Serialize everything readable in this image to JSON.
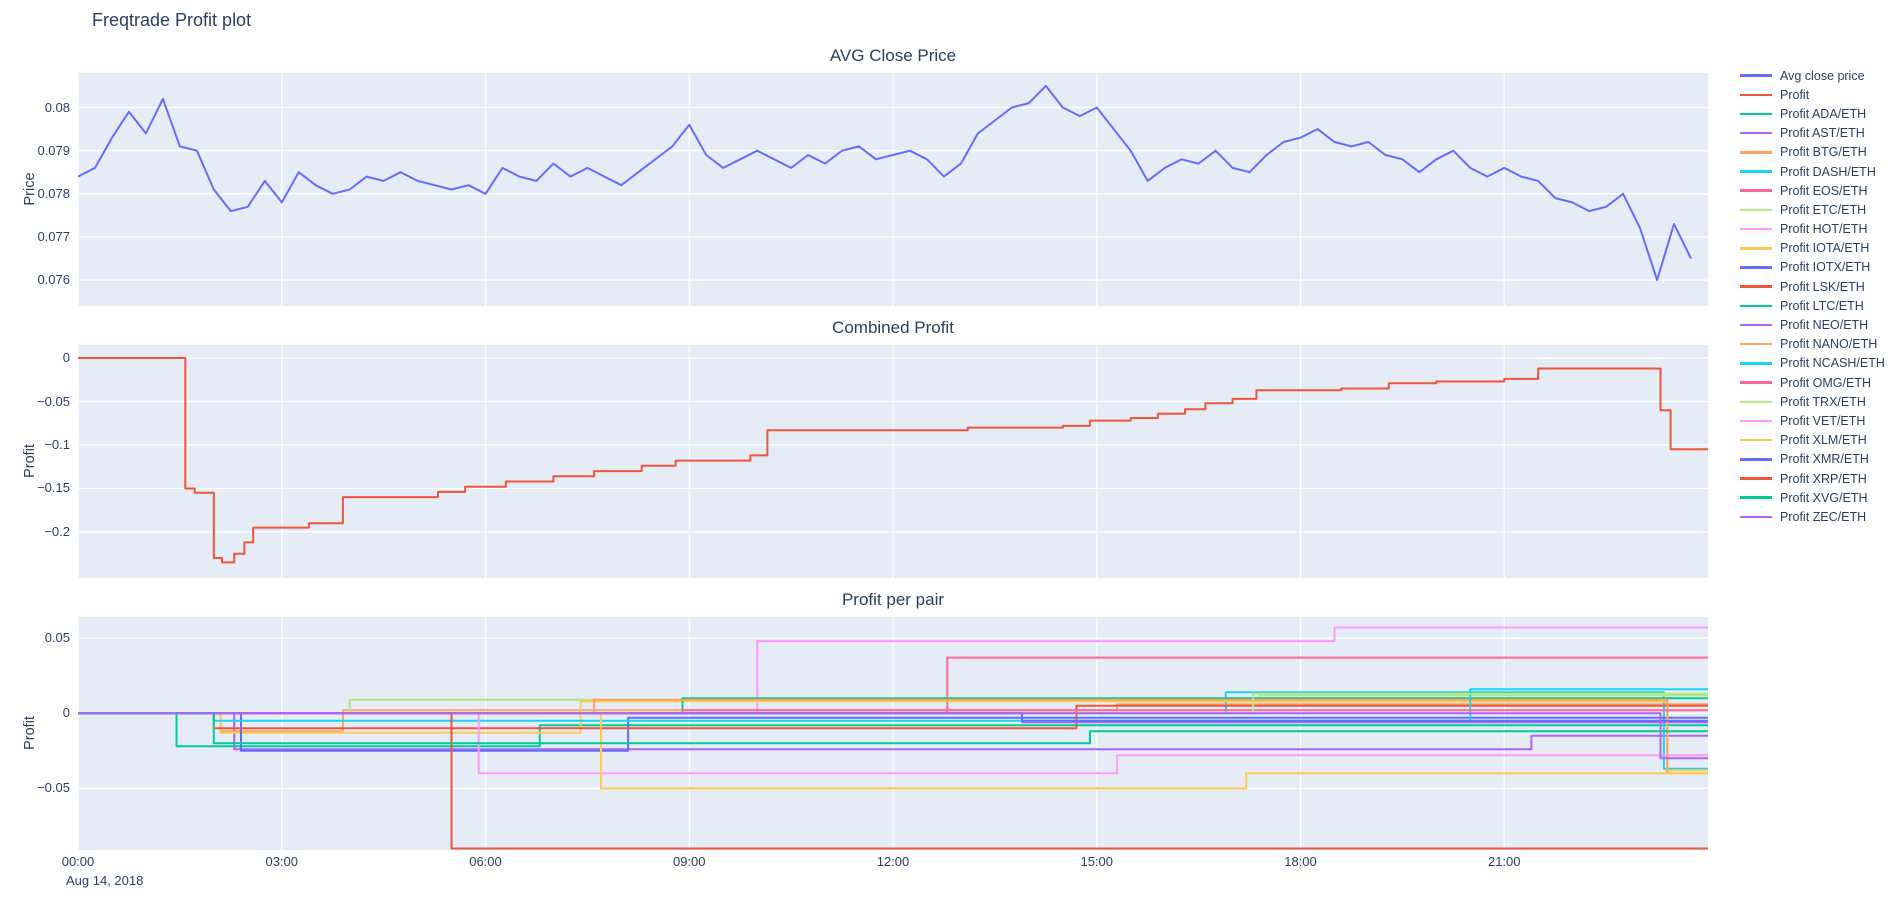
{
  "title": "Freqtrade Profit plot",
  "colors": {
    "text": "#2a3f5f",
    "plot_bg": "#E5ECF6",
    "grid": "#ffffff"
  },
  "xaxis": {
    "min": 0,
    "max": 24,
    "ticks": [
      {
        "h": 0,
        "label": "00:00"
      },
      {
        "h": 3,
        "label": "03:00"
      },
      {
        "h": 6,
        "label": "06:00"
      },
      {
        "h": 9,
        "label": "09:00"
      },
      {
        "h": 12,
        "label": "12:00"
      },
      {
        "h": 15,
        "label": "15:00"
      },
      {
        "h": 18,
        "label": "18:00"
      },
      {
        "h": 21,
        "label": "21:00"
      }
    ],
    "date_label": "Aug 14, 2018"
  },
  "legend": {
    "position": "right",
    "items": [
      {
        "label": "Avg close price",
        "color": "#636EFA"
      },
      {
        "label": "Profit",
        "color": "#EF553B"
      },
      {
        "label": "Profit ADA/ETH",
        "color": "#00CC96"
      },
      {
        "label": "Profit AST/ETH",
        "color": "#AB63FA"
      },
      {
        "label": "Profit BTG/ETH",
        "color": "#FFA15A"
      },
      {
        "label": "Profit DASH/ETH",
        "color": "#19D3F3"
      },
      {
        "label": "Profit EOS/ETH",
        "color": "#FF6692"
      },
      {
        "label": "Profit ETC/ETH",
        "color": "#B6E880"
      },
      {
        "label": "Profit HOT/ETH",
        "color": "#FF97FF"
      },
      {
        "label": "Profit IOTA/ETH",
        "color": "#FECB52"
      },
      {
        "label": "Profit IOTX/ETH",
        "color": "#636EFA"
      },
      {
        "label": "Profit LSK/ETH",
        "color": "#EF553B"
      },
      {
        "label": "Profit LTC/ETH",
        "color": "#00CC96"
      },
      {
        "label": "Profit NEO/ETH",
        "color": "#AB63FA"
      },
      {
        "label": "Profit NANO/ETH",
        "color": "#FFA15A"
      },
      {
        "label": "Profit NCASH/ETH",
        "color": "#19D3F3"
      },
      {
        "label": "Profit OMG/ETH",
        "color": "#FF6692"
      },
      {
        "label": "Profit TRX/ETH",
        "color": "#B6E880"
      },
      {
        "label": "Profit VET/ETH",
        "color": "#FF97FF"
      },
      {
        "label": "Profit XLM/ETH",
        "color": "#FECB52"
      },
      {
        "label": "Profit XMR/ETH",
        "color": "#636EFA"
      },
      {
        "label": "Profit XRP/ETH",
        "color": "#EF553B"
      },
      {
        "label": "Profit XVG/ETH",
        "color": "#00CC96"
      },
      {
        "label": "Profit ZEC/ETH",
        "color": "#AB63FA"
      }
    ]
  },
  "chart_data": [
    {
      "type": "line",
      "title": "AVG Close Price",
      "xlabel": "",
      "ylabel": "Price",
      "ylim": [
        0.0754,
        0.0808
      ],
      "grid": true,
      "yticks": [
        {
          "v": 0.08,
          "label": "0.08"
        },
        {
          "v": 0.079,
          "label": "0.079"
        },
        {
          "v": 0.078,
          "label": "0.078"
        },
        {
          "v": 0.077,
          "label": "0.077"
        },
        {
          "v": 0.076,
          "label": "0.076"
        }
      ],
      "series": [
        {
          "name": "Avg close price",
          "color": "#636EFA",
          "x_start": 0,
          "x_step_hours": 0.25,
          "y": [
            0.0784,
            0.0786,
            0.0793,
            0.0799,
            0.0794,
            0.0802,
            0.0791,
            0.079,
            0.0781,
            0.0776,
            0.0777,
            0.0783,
            0.0778,
            0.0785,
            0.0782,
            0.078,
            0.0781,
            0.0784,
            0.0783,
            0.0785,
            0.0783,
            0.0782,
            0.0781,
            0.0782,
            0.078,
            0.0786,
            0.0784,
            0.0783,
            0.0787,
            0.0784,
            0.0786,
            0.0784,
            0.0782,
            0.0785,
            0.0788,
            0.0791,
            0.0796,
            0.0789,
            0.0786,
            0.0788,
            0.079,
            0.0788,
            0.0786,
            0.0789,
            0.0787,
            0.079,
            0.0791,
            0.0788,
            0.0789,
            0.079,
            0.0788,
            0.0784,
            0.0787,
            0.0794,
            0.0797,
            0.08,
            0.0801,
            0.0805,
            0.08,
            0.0798,
            0.08,
            0.0795,
            0.079,
            0.0783,
            0.0786,
            0.0788,
            0.0787,
            0.079,
            0.0786,
            0.0785,
            0.0789,
            0.0792,
            0.0793,
            0.0795,
            0.0792,
            0.0791,
            0.0792,
            0.0789,
            0.0788,
            0.0785,
            0.0788,
            0.079,
            0.0786,
            0.0784,
            0.0786,
            0.0784,
            0.0783,
            0.0779,
            0.0778,
            0.0776,
            0.0777,
            0.078,
            0.0772,
            0.076,
            0.0773,
            0.0765
          ]
        }
      ]
    },
    {
      "type": "line",
      "line_shape": "step",
      "title": "Combined Profit",
      "xlabel": "",
      "ylabel": "Profit",
      "ylim": [
        -0.253,
        0.015
      ],
      "grid": true,
      "yticks": [
        {
          "v": 0,
          "label": "0"
        },
        {
          "v": -0.05,
          "label": "−0.05"
        },
        {
          "v": -0.1,
          "label": "−0.1"
        },
        {
          "v": -0.15,
          "label": "−0.15"
        },
        {
          "v": -0.2,
          "label": "−0.2"
        }
      ],
      "series": [
        {
          "name": "Profit",
          "color": "#EF553B",
          "steps": [
            [
              0,
              0
            ],
            [
              1.58,
              -0.15
            ],
            [
              1.72,
              -0.155
            ],
            [
              2.0,
              -0.23
            ],
            [
              2.12,
              -0.235
            ],
            [
              2.3,
              -0.225
            ],
            [
              2.45,
              -0.212
            ],
            [
              2.58,
              -0.195
            ],
            [
              3.4,
              -0.19
            ],
            [
              3.9,
              -0.16
            ],
            [
              5.3,
              -0.154
            ],
            [
              5.7,
              -0.148
            ],
            [
              6.3,
              -0.142
            ],
            [
              7.0,
              -0.136
            ],
            [
              7.6,
              -0.13
            ],
            [
              8.3,
              -0.124
            ],
            [
              8.8,
              -0.118
            ],
            [
              9.9,
              -0.112
            ],
            [
              10.15,
              -0.083
            ],
            [
              13.1,
              -0.08
            ],
            [
              14.5,
              -0.078
            ],
            [
              14.9,
              -0.072
            ],
            [
              15.5,
              -0.069
            ],
            [
              15.9,
              -0.064
            ],
            [
              16.3,
              -0.059
            ],
            [
              16.6,
              -0.052
            ],
            [
              17.0,
              -0.047
            ],
            [
              17.35,
              -0.037
            ],
            [
              18.6,
              -0.035
            ],
            [
              19.3,
              -0.029
            ],
            [
              20.0,
              -0.027
            ],
            [
              21.0,
              -0.024
            ],
            [
              21.5,
              -0.012
            ],
            [
              23.3,
              -0.06
            ],
            [
              23.45,
              -0.105
            ]
          ]
        }
      ]
    },
    {
      "type": "line",
      "line_shape": "step",
      "title": "Profit per pair",
      "xlabel": "",
      "ylabel": "Profit",
      "ylim": [
        -0.091,
        0.064
      ],
      "grid": true,
      "yticks": [
        {
          "v": 0.05,
          "label": "0.05"
        },
        {
          "v": 0,
          "label": "0"
        },
        {
          "v": -0.05,
          "label": "−0.05"
        }
      ],
      "series": [
        {
          "name": "Profit ADA/ETH",
          "color": "#00CC96",
          "steps": [
            [
              0,
              0
            ],
            [
              1.45,
              -0.022
            ],
            [
              6.8,
              -0.008
            ]
          ]
        },
        {
          "name": "Profit AST/ETH",
          "color": "#AB63FA",
          "steps": [
            [
              0,
              0
            ],
            [
              2.3,
              -0.024
            ],
            [
              21.4,
              -0.015
            ]
          ]
        },
        {
          "name": "Profit BTG/ETH",
          "color": "#FFA15A",
          "steps": [
            [
              0,
              0
            ],
            [
              2.1,
              -0.012
            ],
            [
              3.9,
              0.002
            ],
            [
              15.3,
              0.006
            ]
          ]
        },
        {
          "name": "Profit DASH/ETH",
          "color": "#19D3F3",
          "steps": [
            [
              0,
              0
            ],
            [
              16.9,
              0.014
            ],
            [
              23.35,
              -0.037
            ]
          ]
        },
        {
          "name": "Profit EOS/ETH",
          "color": "#FF6692",
          "steps": [
            [
              0,
              0
            ],
            [
              12.8,
              0.037
            ]
          ]
        },
        {
          "name": "Profit ETC/ETH",
          "color": "#B6E880",
          "steps": [
            [
              0,
              0
            ],
            [
              4.0,
              0.009
            ],
            [
              17.4,
              0.012
            ]
          ]
        },
        {
          "name": "Profit HOT/ETH",
          "color": "#FF97FF",
          "steps": [
            [
              0,
              0
            ],
            [
              10.0,
              0.048
            ],
            [
              18.5,
              0.057
            ]
          ]
        },
        {
          "name": "Profit IOTA/ETH",
          "color": "#FECB52",
          "steps": [
            [
              0,
              0
            ],
            [
              2.1,
              -0.013
            ],
            [
              7.4,
              0.008
            ],
            [
              23.4,
              -0.038
            ]
          ]
        },
        {
          "name": "Profit IOTX/ETH",
          "color": "#636EFA",
          "steps": [
            [
              0,
              0
            ],
            [
              2.4,
              -0.025
            ],
            [
              8.1,
              -0.003
            ]
          ]
        },
        {
          "name": "Profit LSK/ETH",
          "color": "#EF553B",
          "steps": [
            [
              0,
              0
            ],
            [
              2.0,
              -0.01
            ],
            [
              14.7,
              0.005
            ]
          ]
        },
        {
          "name": "Profit LTC/ETH",
          "color": "#00CC96",
          "steps": [
            [
              0,
              0
            ],
            [
              8.9,
              0.01
            ]
          ]
        },
        {
          "name": "Profit NEO/ETH",
          "color": "#AB63FA",
          "steps": [
            [
              0,
              0
            ],
            [
              13.9,
              -0.006
            ]
          ]
        },
        {
          "name": "Profit NANO/ETH",
          "color": "#FFA15A",
          "steps": [
            [
              0,
              0
            ],
            [
              7.6,
              0.009
            ],
            [
              23.4,
              -0.04
            ]
          ]
        },
        {
          "name": "Profit NCASH/ETH",
          "color": "#19D3F3",
          "steps": [
            [
              0,
              0
            ],
            [
              2.0,
              -0.005
            ],
            [
              20.5,
              0.016
            ]
          ]
        },
        {
          "name": "Profit OMG/ETH",
          "color": "#FF6692",
          "steps": [
            [
              0,
              0
            ],
            [
              8.9,
              0.002
            ]
          ]
        },
        {
          "name": "Profit TRX/ETH",
          "color": "#B6E880",
          "steps": [
            [
              0,
              0
            ],
            [
              17.3,
              0.013
            ]
          ]
        },
        {
          "name": "Profit VET/ETH",
          "color": "#FF97FF",
          "steps": [
            [
              0,
              0
            ],
            [
              5.9,
              -0.04
            ],
            [
              15.3,
              -0.028
            ]
          ]
        },
        {
          "name": "Profit XLM/ETH",
          "color": "#FECB52",
          "steps": [
            [
              0,
              0
            ],
            [
              7.7,
              -0.05
            ],
            [
              17.2,
              -0.04
            ]
          ]
        },
        {
          "name": "Profit XMR/ETH",
          "color": "#636EFA",
          "steps": [
            [
              0,
              0
            ],
            [
              13.9,
              -0.005
            ]
          ]
        },
        {
          "name": "Profit XRP/ETH",
          "color": "#EF553B",
          "steps": [
            [
              0,
              0
            ],
            [
              5.5,
              -0.09
            ]
          ]
        },
        {
          "name": "Profit XVG/ETH",
          "color": "#00CC96",
          "steps": [
            [
              0,
              0
            ],
            [
              2.0,
              -0.02
            ],
            [
              14.9,
              -0.012
            ]
          ]
        },
        {
          "name": "Profit ZEC/ETH",
          "color": "#AB63FA",
          "steps": [
            [
              0,
              0
            ],
            [
              23.3,
              -0.03
            ]
          ]
        }
      ]
    }
  ]
}
